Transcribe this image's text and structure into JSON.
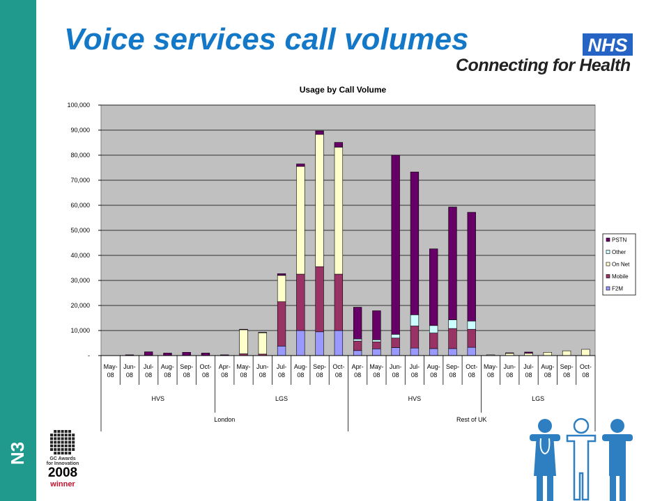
{
  "slide": {
    "title": "Voice services call volumes",
    "side_label": "N3"
  },
  "logo": {
    "badge": "NHS",
    "tagline": "Connecting for Health",
    "badge_color": "#2563c4"
  },
  "award": {
    "line1": "GC Awards",
    "line2": "for Innovation",
    "year": "2008",
    "winner": "winner"
  },
  "colors": {
    "sidebar": "#1f9a8d",
    "title": "#1478c8",
    "plot_background": "#c0c0c0",
    "people_icons": "#2e7fc1"
  },
  "icons": {
    "award": "gc-awards-grid-icon",
    "people": "doctor-patient-nurse-icon"
  },
  "chart_data": {
    "type": "bar",
    "stacked": true,
    "title": "Usage by Call Volume",
    "ylim": [
      0,
      100000
    ],
    "y_ticks": [
      "-",
      "10,000",
      "20,000",
      "30,000",
      "40,000",
      "50,000",
      "60,000",
      "70,000",
      "80,000",
      "90,000",
      "100,000"
    ],
    "grid": true,
    "legend_position": "right",
    "categories": [
      "May-08",
      "Jun-08",
      "Jul-08",
      "Aug-08",
      "Sep-08",
      "Oct-08",
      "Apr-08",
      "May-08",
      "Jun-08",
      "Jul-08",
      "Aug-08",
      "Sep-08",
      "Oct-08",
      "Apr-08",
      "May-08",
      "Jun-08",
      "Jul-08",
      "Aug-08",
      "Sep-08",
      "Oct-08",
      "May-08",
      "Jun-08",
      "Jul-08",
      "Aug-08",
      "Sep-08",
      "Oct-08"
    ],
    "category_labels": [
      [
        "May-",
        "08"
      ],
      [
        "Jun-",
        "08"
      ],
      [
        "Jul-",
        "08"
      ],
      [
        "Aug-",
        "08"
      ],
      [
        "Sep-",
        "08"
      ],
      [
        "Oct-",
        "08"
      ],
      [
        "Apr-",
        "08"
      ],
      [
        "May-",
        "08"
      ],
      [
        "Jun-",
        "08"
      ],
      [
        "Jul-",
        "08"
      ],
      [
        "Aug-",
        "08"
      ],
      [
        "Sep-",
        "08"
      ],
      [
        "Oct-",
        "08"
      ],
      [
        "Apr-",
        "08"
      ],
      [
        "May-",
        "08"
      ],
      [
        "Jun-",
        "08"
      ],
      [
        "Jul-",
        "08"
      ],
      [
        "Aug-",
        "08"
      ],
      [
        "Sep-",
        "08"
      ],
      [
        "Oct-",
        "08"
      ],
      [
        "May-",
        "08"
      ],
      [
        "Jun-",
        "08"
      ],
      [
        "Jul-",
        "08"
      ],
      [
        "Aug-",
        "08"
      ],
      [
        "Sep-",
        "08"
      ],
      [
        "Oct-",
        "08"
      ]
    ],
    "groups": [
      {
        "label": "HVS",
        "start": 0,
        "count": 6
      },
      {
        "label": "LGS",
        "start": 6,
        "count": 7
      },
      {
        "label": "HVS",
        "start": 13,
        "count": 7
      },
      {
        "label": "LGS",
        "start": 20,
        "count": 6
      }
    ],
    "super_groups": [
      {
        "label": "London",
        "start": 0,
        "count": 13
      },
      {
        "label": "Rest of UK",
        "start": 13,
        "count": 13
      }
    ],
    "series": [
      {
        "name": "F2M",
        "color": "#9999ff",
        "values": [
          0,
          0,
          0,
          0,
          0,
          0,
          0,
          0,
          0,
          3800,
          10000,
          9500,
          10000,
          2000,
          2700,
          3200,
          3000,
          2800,
          2800,
          3300,
          0,
          0,
          0,
          0,
          0,
          0
        ]
      },
      {
        "name": "Mobile",
        "color": "#993366",
        "values": [
          0,
          0,
          0,
          0,
          0,
          0,
          0,
          700,
          600,
          17700,
          22500,
          26000,
          22500,
          3800,
          2800,
          3800,
          8800,
          6200,
          8000,
          7200,
          0,
          0,
          0,
          0,
          0,
          0
        ]
      },
      {
        "name": "On Net",
        "color": "#ffffcc",
        "values": [
          0,
          0,
          0,
          0,
          0,
          0,
          0,
          9700,
          8600,
          10500,
          43000,
          52800,
          50700,
          0,
          0,
          0,
          0,
          0,
          0,
          0,
          300,
          1000,
          900,
          1300,
          1900,
          2500
        ]
      },
      {
        "name": "Other",
        "color": "#ccffff",
        "values": [
          0,
          0,
          0,
          0,
          0,
          0,
          0,
          0,
          0,
          0,
          0,
          0,
          0,
          800,
          800,
          1500,
          4500,
          3000,
          3500,
          3300,
          0,
          0,
          0,
          0,
          0,
          0
        ]
      },
      {
        "name": "PSTN",
        "color": "#660066",
        "values": [
          0,
          300,
          1500,
          1000,
          1300,
          1000,
          300,
          100,
          100,
          700,
          1000,
          1400,
          1900,
          12700,
          11600,
          71500,
          57000,
          30600,
          45000,
          43400,
          0,
          100,
          500,
          0,
          0,
          0
        ]
      }
    ]
  }
}
